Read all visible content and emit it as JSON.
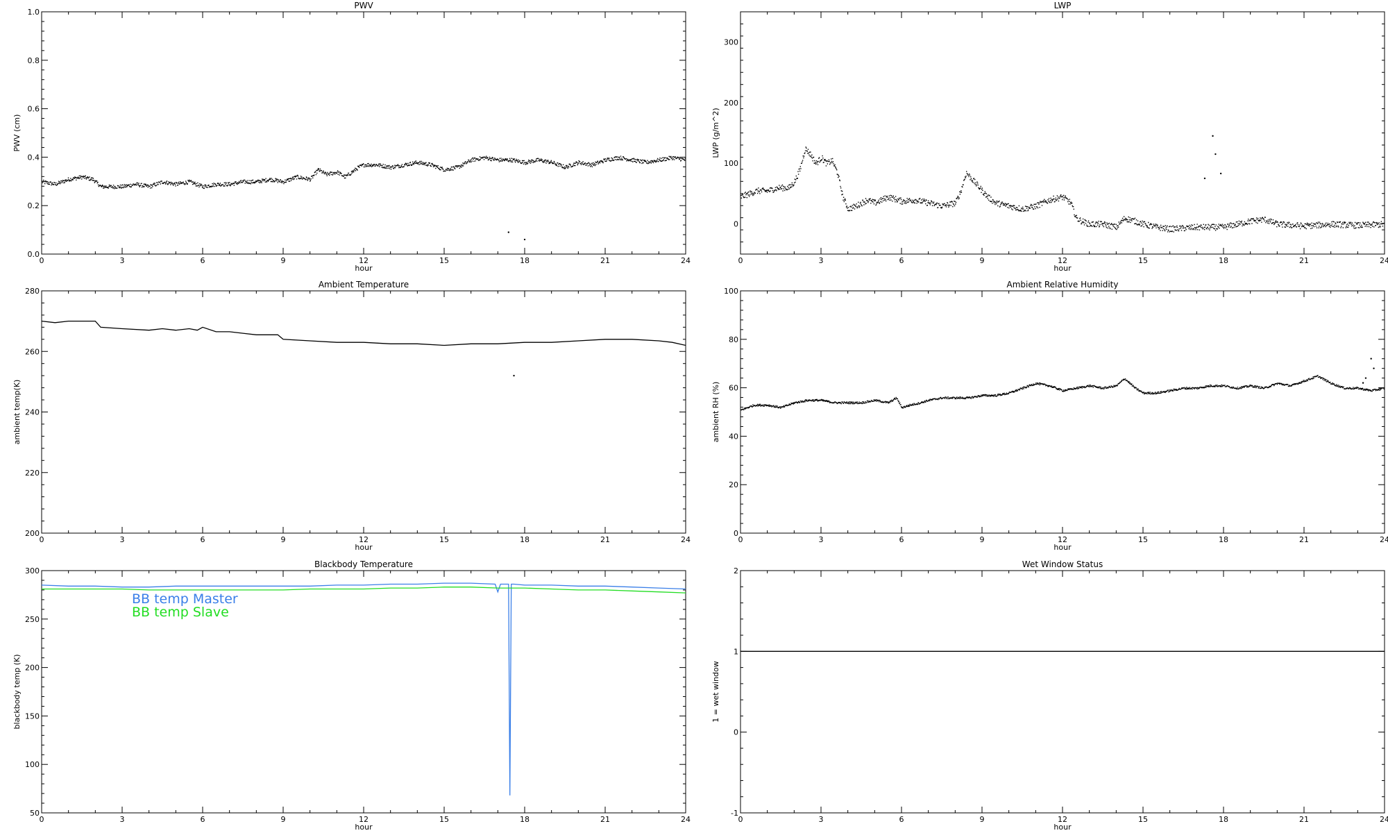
{
  "chart_data": [
    {
      "type": "scatter",
      "title": "PWV",
      "xlabel": "hour",
      "ylabel": "PWV (cm)",
      "xlim": [
        0,
        24
      ],
      "ylim": [
        0.0,
        1.0
      ],
      "xticks": [
        "0",
        "3",
        "6",
        "9",
        "12",
        "15",
        "18",
        "21",
        "24"
      ],
      "yticks": [
        "0.0",
        "0.2",
        "0.4",
        "0.6",
        "0.8",
        "1.0"
      ],
      "grid": false,
      "series": [
        {
          "color": "#000000",
          "style": "dots",
          "noise": 0.008,
          "x": [
            0,
            0.5,
            1,
            1.5,
            1.9,
            2.2,
            2.5,
            3,
            3.5,
            4,
            4.5,
            5,
            5.5,
            6,
            6.5,
            7,
            7.5,
            8,
            8.5,
            9,
            9.5,
            10,
            10.3,
            10.6,
            11,
            11.3,
            11.8,
            12,
            12.5,
            13,
            13.5,
            14,
            14.5,
            15,
            15.5,
            16,
            16.5,
            17,
            17.5,
            18,
            18.5,
            19,
            19.5,
            20,
            20.5,
            21,
            21.5,
            22,
            22.5,
            23,
            23.5,
            24
          ],
          "y": [
            0.3,
            0.29,
            0.31,
            0.32,
            0.31,
            0.28,
            0.28,
            0.28,
            0.29,
            0.28,
            0.3,
            0.29,
            0.3,
            0.28,
            0.29,
            0.29,
            0.3,
            0.3,
            0.31,
            0.3,
            0.32,
            0.31,
            0.35,
            0.33,
            0.34,
            0.32,
            0.36,
            0.37,
            0.37,
            0.36,
            0.37,
            0.38,
            0.37,
            0.35,
            0.36,
            0.39,
            0.4,
            0.39,
            0.39,
            0.38,
            0.39,
            0.38,
            0.36,
            0.38,
            0.37,
            0.39,
            0.4,
            0.39,
            0.38,
            0.39,
            0.4,
            0.39
          ],
          "outliers": [
            [
              17.4,
              0.09
            ],
            [
              18,
              0.06
            ]
          ]
        }
      ]
    },
    {
      "type": "scatter",
      "title": "LWP",
      "xlabel": "hour",
      "ylabel": "LWP (g/m^2)",
      "xlim": [
        0,
        24
      ],
      "ylim": [
        -50,
        350
      ],
      "yticks_vals": [
        0,
        100,
        200,
        300
      ],
      "xticks": [
        "0",
        "3",
        "6",
        "9",
        "12",
        "15",
        "18",
        "21",
        "24"
      ],
      "yticks": [
        "0",
        "100",
        "200",
        "300"
      ],
      "grid": false,
      "series": [
        {
          "color": "#000000",
          "style": "dots",
          "noise": 5,
          "x": [
            0,
            0.3,
            0.6,
            1,
            1.4,
            1.8,
            2,
            2.2,
            2.4,
            2.6,
            2.8,
            3,
            3.2,
            3.4,
            3.6,
            3.8,
            4,
            4.3,
            4.7,
            5,
            5.5,
            6,
            6.5,
            7,
            7.5,
            8,
            8.2,
            8.4,
            8.6,
            8.9,
            9.2,
            9.5,
            10,
            10.5,
            11,
            11.5,
            12,
            12.3,
            12.5,
            12.7,
            13,
            13.5,
            14,
            14.3,
            14.7,
            15,
            15.5,
            16,
            17,
            18,
            18.5,
            19,
            19.5,
            20,
            21,
            22,
            23,
            24
          ],
          "y": [
            45,
            50,
            55,
            55,
            60,
            60,
            70,
            90,
            125,
            115,
            100,
            110,
            100,
            105,
            85,
            45,
            25,
            30,
            40,
            35,
            45,
            38,
            40,
            35,
            30,
            35,
            55,
            85,
            75,
            60,
            45,
            35,
            30,
            25,
            30,
            40,
            45,
            35,
            10,
            5,
            0,
            0,
            -5,
            10,
            5,
            0,
            -5,
            -8,
            -5,
            -5,
            0,
            5,
            8,
            0,
            -3,
            0,
            -2,
            0
          ],
          "outliers": [
            [
              17.6,
              145
            ],
            [
              17.7,
              115
            ],
            [
              17.9,
              83
            ],
            [
              17.3,
              75
            ]
          ]
        }
      ]
    },
    {
      "type": "line",
      "title": "Ambient Temperature",
      "xlabel": "hour",
      "ylabel": "ambient temp(K)",
      "xlim": [
        0,
        24
      ],
      "ylim": [
        200,
        280
      ],
      "xticks": [
        "0",
        "3",
        "6",
        "9",
        "12",
        "15",
        "18",
        "21",
        "24"
      ],
      "yticks": [
        "200",
        "220",
        "240",
        "260",
        "280"
      ],
      "grid": false,
      "series": [
        {
          "color": "#000000",
          "style": "line",
          "x": [
            0,
            0.5,
            1,
            1.5,
            2,
            2.2,
            3,
            4,
            4.5,
            5,
            5.5,
            5.8,
            6,
            6.5,
            7,
            7.5,
            8,
            8.5,
            8.8,
            9,
            10,
            11,
            12,
            13,
            14,
            15,
            16,
            17,
            18,
            19,
            20,
            21,
            22,
            23,
            23.5,
            24
          ],
          "y": [
            270,
            269.5,
            270,
            270,
            270,
            268,
            267.5,
            267,
            267.5,
            267,
            267.5,
            267,
            268,
            266.5,
            266.5,
            266,
            265.5,
            265.5,
            265.5,
            264,
            263.5,
            263,
            263,
            262.5,
            262.5,
            262,
            262.5,
            262.5,
            263,
            263,
            263.5,
            264,
            264,
            263.5,
            263,
            262
          ],
          "outliers": [
            [
              17.6,
              252
            ]
          ]
        }
      ]
    },
    {
      "type": "scatter",
      "title": "Ambient Relative Humidity",
      "xlabel": "hour",
      "ylabel": "ambient RH (%)",
      "xlim": [
        0,
        24
      ],
      "ylim": [
        0,
        100
      ],
      "xticks": [
        "0",
        "3",
        "6",
        "9",
        "12",
        "15",
        "18",
        "21",
        "24"
      ],
      "yticks": [
        "0",
        "20",
        "40",
        "60",
        "80",
        "100"
      ],
      "grid": false,
      "series": [
        {
          "color": "#000000",
          "style": "dots",
          "noise": 0.4,
          "x": [
            0,
            0.5,
            1,
            1.5,
            2,
            2.5,
            3,
            3.5,
            4,
            4.5,
            5,
            5.5,
            5.8,
            6,
            6.3,
            6.7,
            7,
            7.5,
            8,
            8.5,
            9,
            9.5,
            10,
            10.5,
            11,
            11.5,
            12,
            12.5,
            13,
            13.5,
            14,
            14.3,
            14.7,
            15,
            15.5,
            16,
            16.5,
            17,
            17.5,
            18,
            18.5,
            19,
            19.5,
            20,
            20.5,
            21,
            21.5,
            22,
            22.5,
            23,
            23.5,
            24
          ],
          "y": [
            51,
            53,
            53,
            52,
            54,
            55,
            55,
            54,
            54,
            54,
            55,
            54,
            56,
            52,
            53,
            54,
            55,
            56,
            56,
            56,
            57,
            57,
            58,
            60,
            62,
            61,
            59,
            60,
            61,
            60,
            61,
            64,
            60,
            58,
            58,
            59,
            60,
            60,
            61,
            61,
            60,
            61,
            60,
            62,
            61,
            63,
            65,
            62,
            60,
            60,
            59,
            60
          ],
          "outliers": [
            [
              23.5,
              72
            ],
            [
              23.6,
              68
            ],
            [
              23.3,
              64
            ],
            [
              23.2,
              62
            ]
          ]
        }
      ]
    },
    {
      "type": "line",
      "title": "Blackbody Temperature",
      "xlabel": "hour",
      "ylabel": "blackbody temp (K)",
      "xlim": [
        0,
        24
      ],
      "ylim": [
        50,
        300
      ],
      "xticks": [
        "0",
        "3",
        "6",
        "9",
        "12",
        "15",
        "18",
        "21",
        "24"
      ],
      "yticks": [
        "50",
        "100",
        "150",
        "200",
        "250",
        "300"
      ],
      "grid": false,
      "legend_position": "top-left",
      "series": [
        {
          "name": "BB temp Master",
          "color": "#3a7fe8",
          "style": "line",
          "x": [
            0,
            1,
            2,
            3,
            4,
            5,
            6,
            7,
            8,
            9,
            10,
            11,
            12,
            13,
            14,
            15,
            16,
            16.9,
            17,
            17.1,
            17.3,
            17.4,
            17.45,
            17.5,
            17.6,
            18,
            19,
            20,
            21,
            22,
            23,
            24
          ],
          "y": [
            285,
            284,
            284,
            283,
            283,
            284,
            284,
            284,
            284,
            284,
            284,
            285,
            285,
            286,
            286,
            287,
            287,
            286,
            278,
            286,
            286,
            286,
            68,
            286,
            286,
            285,
            285,
            284,
            284,
            283,
            282,
            281
          ]
        },
        {
          "name": "BB temp Slave",
          "color": "#22dd22",
          "style": "line",
          "x": [
            0,
            1,
            2,
            3,
            4,
            5,
            6,
            7,
            8,
            9,
            10,
            11,
            12,
            13,
            14,
            15,
            16,
            17,
            18,
            19,
            20,
            21,
            22,
            23,
            24
          ],
          "y": [
            281,
            281,
            281,
            281,
            280,
            280,
            280,
            280,
            280,
            280,
            281,
            281,
            281,
            282,
            282,
            283,
            283,
            282,
            282,
            281,
            280,
            280,
            279,
            278,
            277
          ]
        }
      ]
    },
    {
      "type": "line",
      "title": "Wet Window Status",
      "xlabel": "hour",
      "ylabel": "1 = wet window",
      "xlim": [
        0,
        24
      ],
      "ylim": [
        -1,
        2
      ],
      "xticks": [
        "0",
        "3",
        "6",
        "9",
        "12",
        "15",
        "18",
        "21",
        "24"
      ],
      "yticks": [
        "-1",
        "0",
        "1",
        "2"
      ],
      "grid": false,
      "series": [
        {
          "color": "#000000",
          "style": "line",
          "x": [
            0,
            24
          ],
          "y": [
            1,
            1
          ]
        }
      ]
    }
  ]
}
